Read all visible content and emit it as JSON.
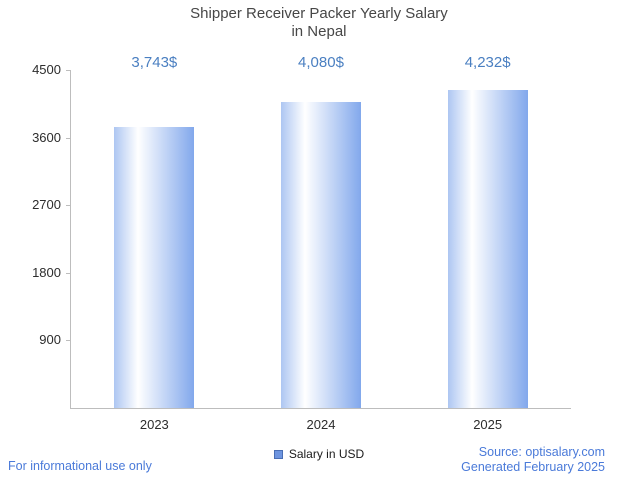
{
  "title": {
    "line1": "Shipper Receiver Packer Yearly Salary",
    "line2": "in Nepal"
  },
  "chart_data": {
    "type": "bar",
    "title": "Shipper Receiver Packer Yearly Salary in Nepal",
    "categories": [
      "2023",
      "2024",
      "2025"
    ],
    "values": [
      3743,
      4080,
      4232
    ],
    "value_labels": [
      "3,743$",
      "4,080$",
      "4,232$"
    ],
    "xlabel": "",
    "ylabel": "",
    "ylim": [
      0,
      4500
    ],
    "yticks": [
      900,
      1800,
      2700,
      3600,
      4500
    ],
    "grid": false,
    "legend": {
      "label": "Salary in USD",
      "position": "bottom-center"
    }
  },
  "footer": {
    "disclaimer": "For informational use only",
    "source": "Source: optisalary.com",
    "generated": "Generated February 2025"
  },
  "colors": {
    "title": "#474747",
    "axis_text": "#2d2d2d",
    "axis_line": "#bdbdbd",
    "value_label": "#4a7fc1",
    "footer_link": "#4a7ad9",
    "bar_gradient": [
      "#adc6f2",
      "#ffffff",
      "#82a8ec"
    ],
    "legend_marker": "#6e95e0",
    "legend_marker_border": "#4a6fb5"
  }
}
